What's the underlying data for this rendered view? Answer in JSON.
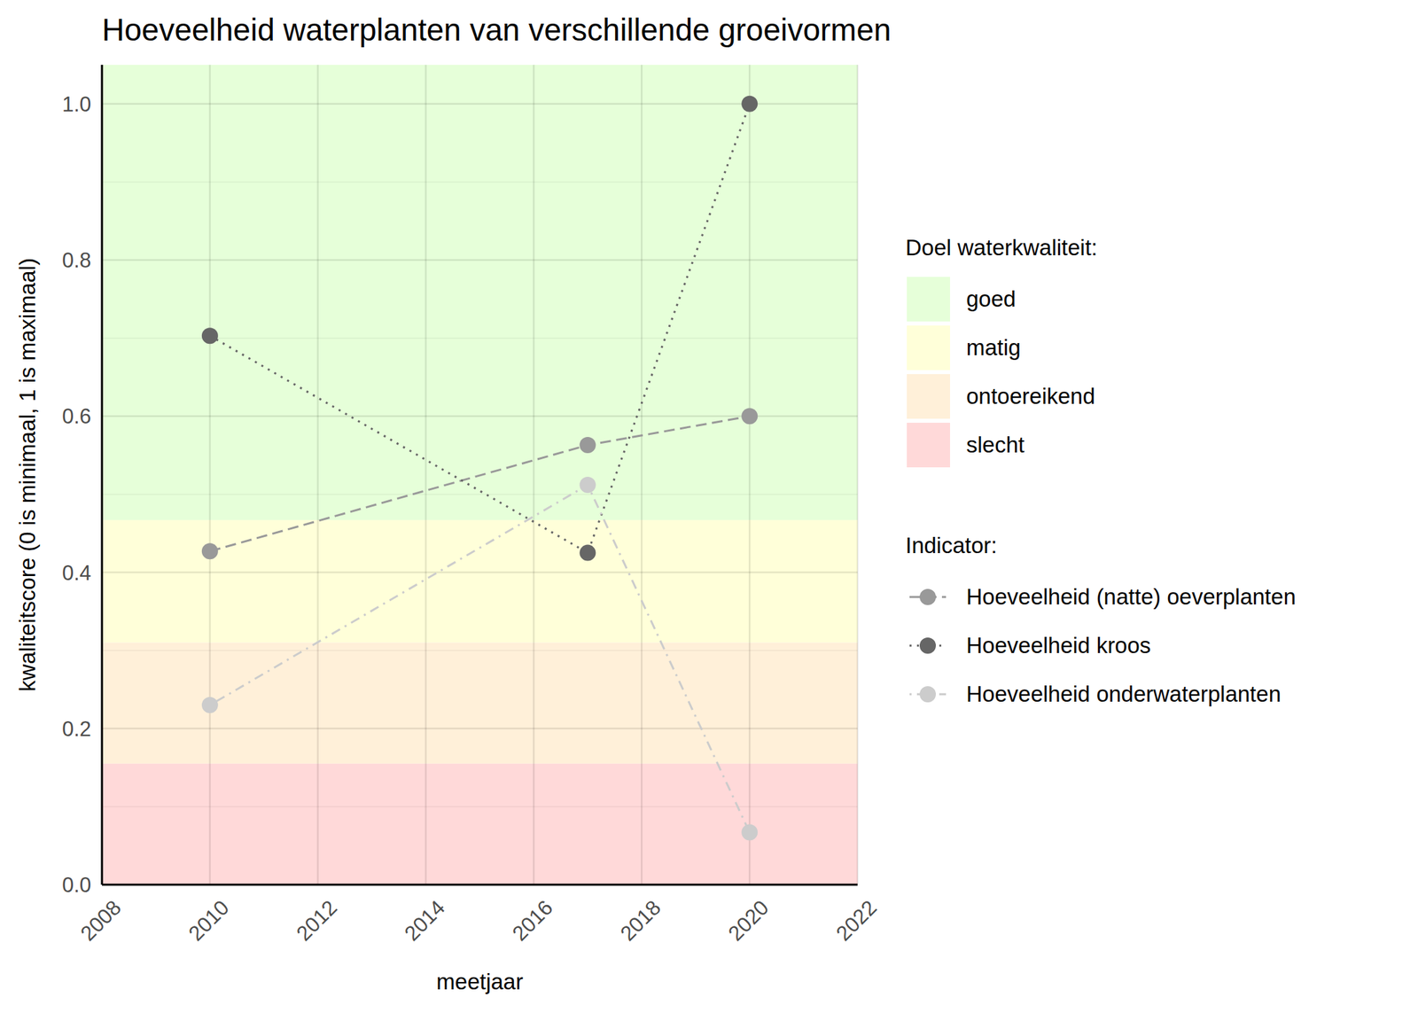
{
  "chart_data": {
    "type": "line",
    "title": "Hoeveelheid waterplanten van verschillende groeivormen",
    "x_label": "meetjaar",
    "y_label": "kwaliteitscore (0 is minimaal, 1 is maximaal)",
    "x": [
      2010,
      2017,
      2020
    ],
    "xlim": [
      2008,
      2022
    ],
    "xticks": [
      2008,
      2010,
      2012,
      2014,
      2016,
      2018,
      2020,
      2022
    ],
    "ylim": [
      0,
      1.05
    ],
    "yticks": [
      {
        "value": 0,
        "label": "0.0"
      },
      0.2,
      0.4,
      0.6,
      0.8,
      {
        "value": 1,
        "label": "1.0"
      }
    ],
    "grid": true,
    "bands_title": "Doel waterkwaliteit:",
    "bands": [
      {
        "name": "goed",
        "from": 0.467,
        "to": 1.05,
        "color": "#e6ffd9"
      },
      {
        "name": "matig",
        "from": 0.31,
        "to": 0.467,
        "color": "#ffffd9"
      },
      {
        "name": "ontoereikend",
        "from": 0.155,
        "to": 0.31,
        "color": "#fff0d9"
      },
      {
        "name": "slecht",
        "from": 0,
        "to": 0.155,
        "color": "#ffd9d9"
      }
    ],
    "legend_title": "Indicator:",
    "series": [
      {
        "name": "Hoeveelheid (natte) oeverplanten",
        "color": "#999999",
        "marker": "circle",
        "line_style": "dashed",
        "values": [
          0.427,
          0.563,
          0.6
        ]
      },
      {
        "name": "Hoeveelheid kroos",
        "color": "#666666",
        "marker": "circle",
        "line_style": "dotted",
        "values": [
          0.703,
          0.425,
          1.0
        ]
      },
      {
        "name": "Hoeveelheid onderwaterplanten",
        "color": "#cccccc",
        "marker": "circle",
        "line_style": "dotdash",
        "values": [
          0.23,
          0.512,
          0.067
        ]
      }
    ]
  }
}
